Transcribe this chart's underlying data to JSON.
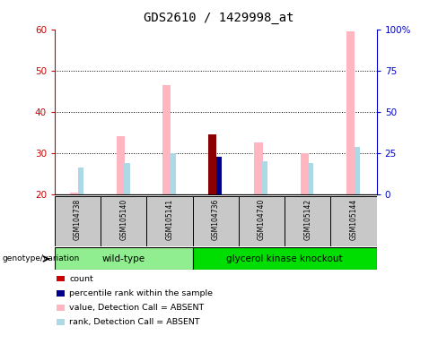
{
  "title": "GDS2610 / 1429998_at",
  "samples": [
    "GSM104738",
    "GSM105140",
    "GSM105141",
    "GSM104736",
    "GSM104740",
    "GSM105142",
    "GSM105144"
  ],
  "ylim_left": [
    20,
    60
  ],
  "ylim_right": [
    0,
    100
  ],
  "yticks_left": [
    20,
    30,
    40,
    50,
    60
  ],
  "yticks_right": [
    0,
    25,
    50,
    75,
    100
  ],
  "ytick_labels_right": [
    "0",
    "25",
    "50",
    "75",
    "100%"
  ],
  "left_axis_color": "#CC0000",
  "right_axis_color": "#0000CC",
  "bar_bottom": 20,
  "value_bars": {
    "GSM104738": {
      "value": 20.5,
      "rank": 26.5,
      "type": "absent"
    },
    "GSM105140": {
      "value": 34.0,
      "rank": 27.5,
      "type": "absent"
    },
    "GSM105141": {
      "value": 46.5,
      "rank": 30.0,
      "type": "absent"
    },
    "GSM104736": {
      "value": 34.5,
      "rank": 29.0,
      "type": "present"
    },
    "GSM104740": {
      "value": 32.5,
      "rank": 28.0,
      "type": "absent"
    },
    "GSM105142": {
      "value": 30.0,
      "rank": 27.5,
      "type": "absent"
    },
    "GSM105144": {
      "value": 59.5,
      "rank": 31.5,
      "type": "absent"
    }
  },
  "color_value_absent": "#FFB6C1",
  "color_rank_absent": "#ADD8E6",
  "color_value_present": "#8B0000",
  "color_rank_present": "#00008B",
  "wt_color": "#90EE90",
  "gk_color": "#00DD00",
  "sample_box_color": "#C8C8C8",
  "legend_items": [
    {
      "color": "#CC0000",
      "label": "count"
    },
    {
      "color": "#00008B",
      "label": "percentile rank within the sample"
    },
    {
      "color": "#FFB6C1",
      "label": "value, Detection Call = ABSENT"
    },
    {
      "color": "#ADD8E6",
      "label": "rank, Detection Call = ABSENT"
    }
  ],
  "title_fontsize": 10
}
